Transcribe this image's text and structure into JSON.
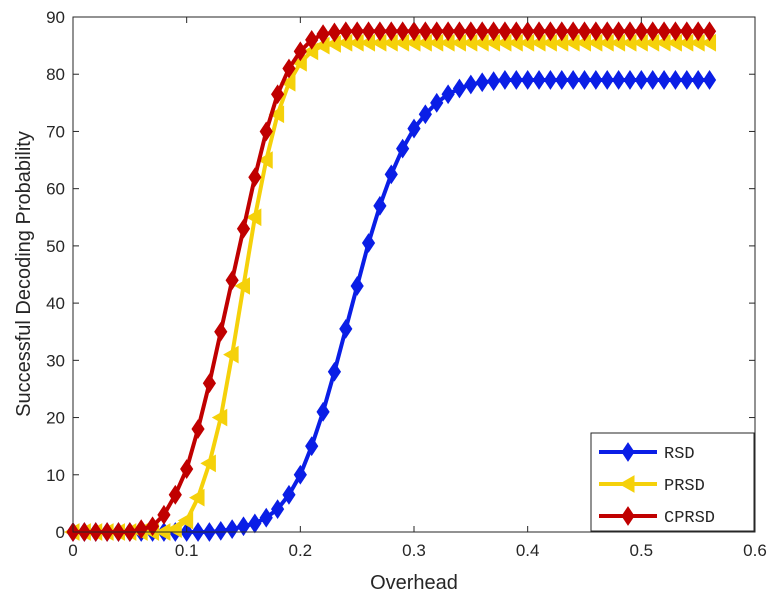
{
  "chart_data": {
    "type": "line",
    "title": "",
    "xlabel": "Overhead",
    "ylabel": "Successful Decoding Probability",
    "xlim": [
      0,
      0.6
    ],
    "ylim": [
      0,
      90
    ],
    "xticks": [
      "0",
      "0.1",
      "0.2",
      "0.3",
      "0.4",
      "0.5",
      "0.6"
    ],
    "yticks": [
      "0",
      "10",
      "20",
      "30",
      "40",
      "50",
      "60",
      "70",
      "80",
      "90"
    ],
    "grid": false,
    "legend_position": "bottom-right",
    "x": [
      0.0,
      0.01,
      0.02,
      0.03,
      0.04,
      0.05,
      0.06,
      0.07,
      0.08,
      0.09,
      0.1,
      0.11,
      0.12,
      0.13,
      0.14,
      0.15,
      0.16,
      0.17,
      0.18,
      0.19,
      0.2,
      0.21,
      0.22,
      0.23,
      0.24,
      0.25,
      0.26,
      0.27,
      0.28,
      0.29,
      0.3,
      0.31,
      0.32,
      0.33,
      0.34,
      0.35,
      0.36,
      0.37,
      0.38,
      0.39,
      0.4,
      0.41,
      0.42,
      0.43,
      0.44,
      0.45,
      0.46,
      0.47,
      0.48,
      0.49,
      0.5,
      0.51,
      0.52,
      0.53,
      0.54,
      0.55,
      0.56
    ],
    "series": [
      {
        "name": "RSD",
        "color": "#0a1ee6",
        "marker": "diamond",
        "values": [
          0,
          0,
          0,
          0,
          0,
          0,
          0,
          0,
          0,
          0,
          0,
          0,
          0,
          0.2,
          0.5,
          1,
          1.5,
          2.5,
          4,
          6.5,
          10,
          15,
          21,
          28,
          35.5,
          43,
          50.5,
          57,
          62.5,
          67,
          70.5,
          73,
          75,
          76.5,
          77.5,
          78.2,
          78.6,
          78.8,
          79,
          79,
          79,
          79,
          79,
          79,
          79,
          79,
          79,
          79,
          79,
          79,
          79,
          79,
          79,
          79,
          79,
          79,
          79
        ]
      },
      {
        "name": "PRSD",
        "color": "#f5d10a",
        "marker": "triangle-left",
        "values": [
          0,
          0,
          0,
          0,
          0,
          0,
          0,
          0,
          0,
          0.5,
          2,
          6,
          12,
          20,
          31,
          43,
          55,
          65,
          73,
          78.5,
          82,
          84,
          85,
          85.3,
          85.5,
          85.5,
          85.5,
          85.5,
          85.5,
          85.5,
          85.5,
          85.5,
          85.5,
          85.5,
          85.5,
          85.5,
          85.5,
          85.5,
          85.5,
          85.5,
          85.5,
          85.5,
          85.5,
          85.5,
          85.5,
          85.5,
          85.5,
          85.5,
          85.5,
          85.5,
          85.5,
          85.5,
          85.5,
          85.5,
          85.5,
          85.5,
          85.5
        ]
      },
      {
        "name": "CPRSD",
        "color": "#c00000",
        "marker": "diamond",
        "values": [
          0,
          0,
          0,
          0,
          0,
          0,
          0.5,
          1,
          3,
          6.5,
          11,
          18,
          26,
          35,
          44,
          53,
          62,
          70,
          76.5,
          81,
          84,
          86,
          87,
          87.3,
          87.5,
          87.5,
          87.5,
          87.5,
          87.5,
          87.5,
          87.5,
          87.5,
          87.5,
          87.5,
          87.5,
          87.5,
          87.5,
          87.5,
          87.5,
          87.5,
          87.5,
          87.5,
          87.5,
          87.5,
          87.5,
          87.5,
          87.5,
          87.5,
          87.5,
          87.5,
          87.5,
          87.5,
          87.5,
          87.5,
          87.5,
          87.5,
          87.5
        ]
      }
    ]
  }
}
